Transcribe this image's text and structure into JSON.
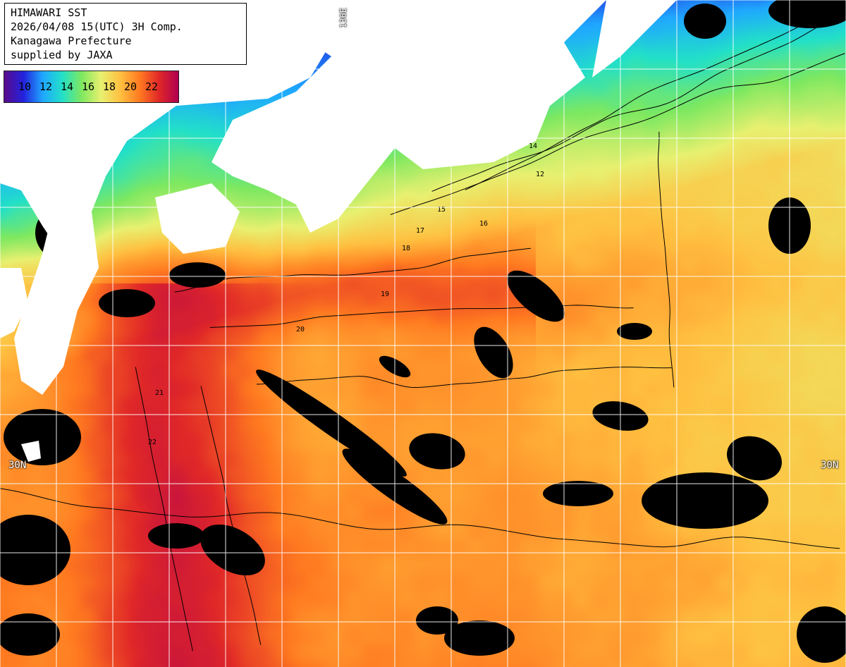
{
  "header": {
    "line1": "HIMAWARI SST",
    "line2": "2026/04/08 15(UTC) 3H Comp.",
    "line3": "Kanagawa Prefecture",
    "line4": "supplied by JAXA"
  },
  "colorbar": {
    "ticks": [
      "10",
      "12",
      "14",
      "16",
      "18",
      "20",
      "22"
    ],
    "gradient": [
      "#5a0a8c",
      "#2222dd",
      "#1fa8ff",
      "#22e0c8",
      "#7ee860",
      "#e8f070",
      "#ffc040",
      "#ff7a20",
      "#e02828",
      "#b00050"
    ]
  },
  "grid_labels": {
    "lat_left": "30N",
    "lat_right": "30N",
    "lon_top": "136E"
  },
  "contour_labels": [
    "12",
    "14",
    "15",
    "16",
    "17",
    "18",
    "19",
    "20",
    "21",
    "22"
  ],
  "colors": {
    "land": "#ffffff",
    "cloud_missing": "#000000",
    "grid": "#ffffff",
    "contour": "#000000"
  }
}
